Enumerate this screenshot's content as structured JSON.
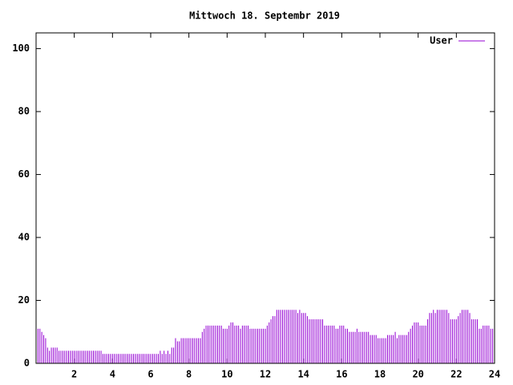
{
  "chart_data": {
    "type": "impulse",
    "title": "Mittwoch 18. Septembr 2019",
    "xlim": [
      0,
      24
    ],
    "xticks": [
      2,
      4,
      6,
      8,
      10,
      12,
      14,
      16,
      18,
      20,
      22,
      24
    ],
    "ylim": [
      0,
      105
    ],
    "yticks": [
      0,
      20,
      40,
      60,
      80,
      100
    ],
    "legend": "top-right",
    "series": [
      {
        "name": "User",
        "color": "#9400d3",
        "x": [
          0,
          0.1,
          0.2,
          0.3,
          0.4,
          0.5,
          0.6,
          0.7,
          0.8,
          0.9,
          1,
          1.1,
          1.2,
          1.3,
          1.4,
          1.5,
          1.6,
          1.7,
          1.8,
          1.9,
          2,
          2.1,
          2.2,
          2.3,
          2.4,
          2.5,
          2.6,
          2.7,
          2.8,
          2.9,
          3,
          3.1,
          3.2,
          3.3,
          3.4,
          3.5,
          3.6,
          3.7,
          3.8,
          3.9,
          4,
          4.1,
          4.2,
          4.3,
          4.4,
          4.5,
          4.6,
          4.7,
          4.8,
          4.9,
          5,
          5.1,
          5.2,
          5.3,
          5.4,
          5.5,
          5.6,
          5.7,
          5.8,
          5.9,
          6,
          6.1,
          6.2,
          6.3,
          6.4,
          6.5,
          6.6,
          6.7,
          6.8,
          6.9,
          7,
          7.1,
          7.2,
          7.3,
          7.4,
          7.5,
          7.6,
          7.7,
          7.8,
          7.9,
          8,
          8.1,
          8.2,
          8.3,
          8.4,
          8.5,
          8.6,
          8.7,
          8.8,
          8.9,
          9,
          9.1,
          9.2,
          9.3,
          9.4,
          9.5,
          9.6,
          9.7,
          9.8,
          9.9,
          10,
          10.1,
          10.2,
          10.3,
          10.4,
          10.5,
          10.6,
          10.7,
          10.8,
          10.9,
          11,
          11.1,
          11.2,
          11.3,
          11.4,
          11.5,
          11.6,
          11.7,
          11.8,
          11.9,
          12,
          12.1,
          12.2,
          12.3,
          12.4,
          12.5,
          12.6,
          12.7,
          12.8,
          12.9,
          13,
          13.1,
          13.2,
          13.3,
          13.4,
          13.5,
          13.6,
          13.7,
          13.8,
          13.9,
          14,
          14.1,
          14.2,
          14.3,
          14.4,
          14.5,
          14.6,
          14.7,
          14.8,
          14.9,
          15,
          15.1,
          15.2,
          15.3,
          15.4,
          15.5,
          15.6,
          15.7,
          15.8,
          15.9,
          16,
          16.1,
          16.2,
          16.3,
          16.4,
          16.5,
          16.6,
          16.7,
          16.8,
          16.9,
          17,
          17.1,
          17.2,
          17.3,
          17.4,
          17.5,
          17.6,
          17.7,
          17.8,
          17.9,
          18,
          18.1,
          18.2,
          18.3,
          18.4,
          18.5,
          18.6,
          18.7,
          18.8,
          18.9,
          19,
          19.1,
          19.2,
          19.3,
          19.4,
          19.5,
          19.6,
          19.7,
          19.8,
          19.9,
          20,
          20.1,
          20.2,
          20.3,
          20.4,
          20.5,
          20.6,
          20.7,
          20.8,
          20.9,
          21,
          21.1,
          21.2,
          21.3,
          21.4,
          21.5,
          21.6,
          21.7,
          21.8,
          21.9,
          22,
          22.1,
          22.2,
          22.3,
          22.4,
          22.5,
          22.6,
          22.7,
          22.8,
          22.9,
          23,
          23.1,
          23.2,
          23.3,
          23.4,
          23.5,
          23.6,
          23.7,
          23.8,
          23.9
        ],
        "values": [
          11,
          11,
          11,
          10,
          9,
          8,
          5,
          4,
          5,
          5,
          5,
          5,
          4,
          4,
          4,
          4,
          4,
          4,
          4,
          4,
          4,
          4,
          4,
          4,
          4,
          4,
          4,
          4,
          4,
          4,
          4,
          4,
          4,
          4,
          4,
          3,
          3,
          3,
          3,
          3,
          3,
          3,
          3,
          3,
          3,
          3,
          3,
          3,
          3,
          3,
          3,
          3,
          3,
          3,
          3,
          3,
          3,
          3,
          3,
          3,
          3,
          3,
          3,
          3,
          3,
          4,
          3,
          4,
          3,
          4,
          3,
          5,
          5,
          8,
          7,
          7,
          8,
          8,
          8,
          8,
          8,
          8,
          8,
          8,
          8,
          8,
          8,
          10,
          11,
          12,
          12,
          12,
          12,
          12,
          12,
          12,
          12,
          12,
          11,
          11,
          11,
          12,
          13,
          13,
          12,
          12,
          12,
          11,
          12,
          12,
          12,
          12,
          11,
          11,
          11,
          11,
          11,
          11,
          11,
          11,
          11,
          12,
          13,
          14,
          15,
          15,
          17,
          17,
          17,
          17,
          17,
          17,
          17,
          17,
          17,
          17,
          17,
          16,
          17,
          16,
          16,
          16,
          15,
          14,
          14,
          14,
          14,
          14,
          14,
          14,
          14,
          12,
          12,
          12,
          12,
          12,
          12,
          11,
          11,
          12,
          12,
          12,
          11,
          11,
          10,
          10,
          10,
          10,
          11,
          10,
          10,
          10,
          10,
          10,
          10,
          9,
          9,
          9,
          9,
          8,
          8,
          8,
          8,
          8,
          9,
          9,
          9,
          9,
          10,
          8,
          9,
          9,
          9,
          9,
          9,
          10,
          11,
          12,
          13,
          13,
          13,
          12,
          12,
          12,
          12,
          14,
          16,
          16,
          17,
          16,
          17,
          17,
          17,
          17,
          17,
          17,
          16,
          14,
          14,
          14,
          14,
          15,
          16,
          17,
          17,
          17,
          17,
          16,
          14,
          14,
          14,
          14,
          11,
          11,
          12,
          12,
          12,
          12,
          11,
          11
        ]
      }
    ]
  }
}
